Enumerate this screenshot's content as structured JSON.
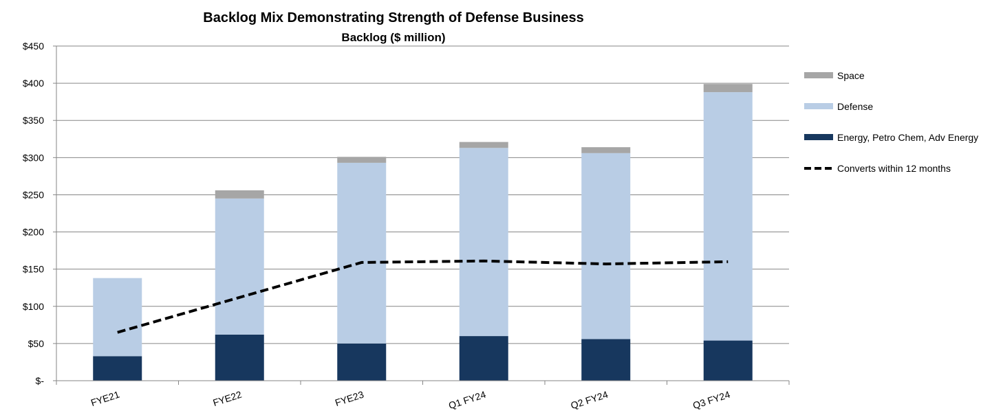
{
  "chart_data": {
    "type": "bar",
    "stacked": true,
    "title": "Backlog Mix Demonstrating Strength of Defense Business",
    "subtitle": "Backlog ($ million)",
    "categories": [
      "FYE21",
      "FYE22",
      "FYE23",
      "Q1 FY24",
      "Q2 FY24",
      "Q3 FY24"
    ],
    "y_ticks": [
      "$-",
      "$50",
      "$100",
      "$150",
      "$200",
      "$250",
      "$300",
      "$350",
      "$400",
      "$450"
    ],
    "ylim": [
      0,
      450
    ],
    "grid": true,
    "legend_position": "right",
    "series": [
      {
        "name": "Energy, Petro Chem, Adv Energy",
        "kind": "bar",
        "color": "#17375e",
        "values": [
          33,
          62,
          50,
          60,
          56,
          54
        ]
      },
      {
        "name": "Defense",
        "kind": "bar",
        "color": "#b9cde5",
        "values": [
          105,
          183,
          243,
          253,
          250,
          334
        ]
      },
      {
        "name": "Space",
        "kind": "bar",
        "color": "#a6a6a6",
        "values": [
          0,
          11,
          8,
          8,
          8,
          11
        ]
      },
      {
        "name": "Converts within 12 months",
        "kind": "line",
        "color": "#000000",
        "values": [
          65,
          112,
          159,
          161,
          157,
          160
        ]
      }
    ]
  }
}
